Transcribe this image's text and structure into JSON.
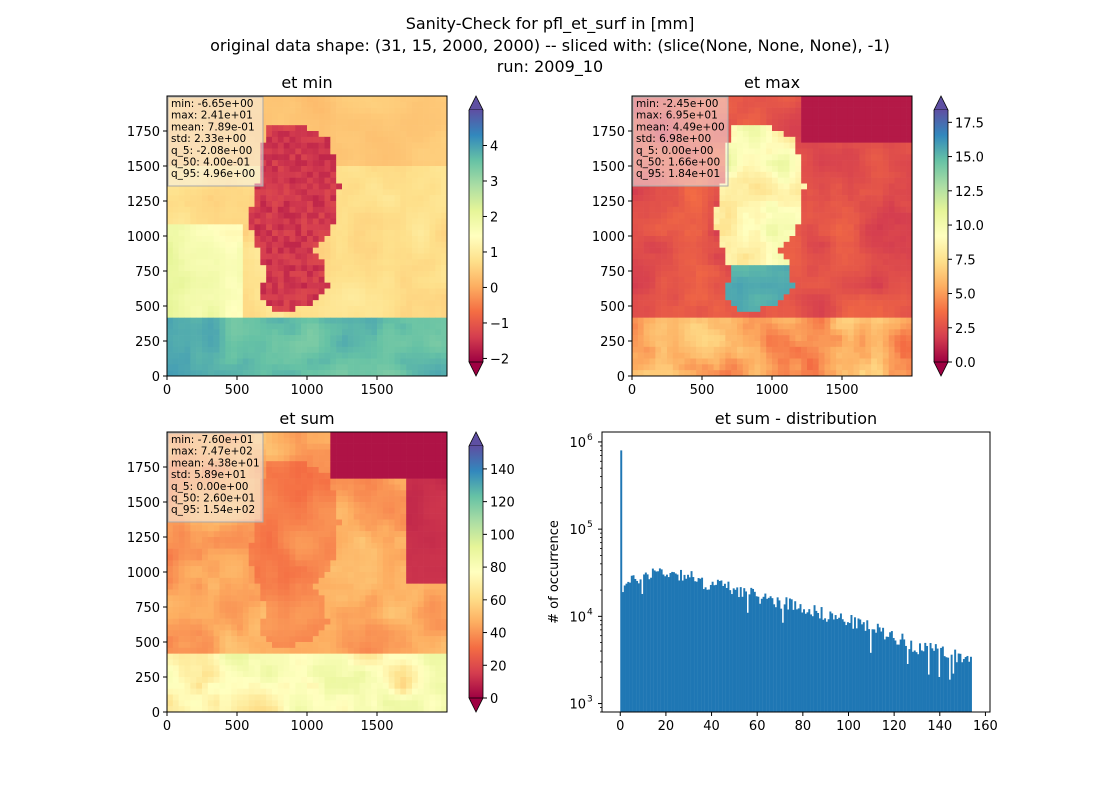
{
  "suptitle": {
    "line1": "Sanity-Check for pfl_et_surf in [mm]",
    "line2": "original data shape: (31, 15, 2000, 2000) -- sliced with: (slice(None, None, None), -1)",
    "line3": "run: 2009_10"
  },
  "colors": {
    "hist_bar": "#1f77b4",
    "stat_box_bg": "#f5f5f5",
    "colormap": "Spectral",
    "spectral_stops": [
      "#9e0142",
      "#d53e4f",
      "#f46d43",
      "#fdae61",
      "#fee08b",
      "#ffffbf",
      "#e6f598",
      "#abdda4",
      "#66c2a5",
      "#3288bd",
      "#5e4fa2"
    ]
  },
  "chart_data": [
    {
      "type": "heatmap",
      "title": "et min",
      "xlim": [
        0,
        2000
      ],
      "ylim": [
        0,
        2000
      ],
      "x_ticks": [
        0,
        500,
        1000,
        1500
      ],
      "y_ticks": [
        0,
        250,
        500,
        750,
        1000,
        1250,
        1500,
        1750
      ],
      "colorbar": {
        "range": [
          -2.1,
          5.0
        ],
        "ticks": [
          -2,
          -1,
          0,
          1,
          2,
          3,
          4
        ],
        "tick_labels": [
          "−2",
          "−1",
          "0",
          "1",
          "2",
          "3",
          "4"
        ],
        "extend": "both"
      },
      "stats": [
        "min: -6.65e+00",
        "max: 2.41e+01",
        "mean: 7.89e-01",
        "std: 2.33e+00",
        "q_5: -2.08e+00",
        "q_50: 4.00e-01",
        "q_95: 4.96e+00"
      ]
    },
    {
      "type": "heatmap",
      "title": "et max",
      "xlim": [
        0,
        2000
      ],
      "ylim": [
        0,
        2000
      ],
      "x_ticks": [
        0,
        500,
        1000,
        1500
      ],
      "y_ticks": [
        0,
        250,
        500,
        750,
        1000,
        1250,
        1500,
        1750
      ],
      "colorbar": {
        "range": [
          0,
          18.4
        ],
        "ticks": [
          0,
          2.5,
          5,
          7.5,
          10,
          12.5,
          15,
          17.5
        ],
        "tick_labels": [
          "0.0",
          "2.5",
          "5.0",
          "7.5",
          "10.0",
          "12.5",
          "15.0",
          "17.5"
        ],
        "extend": "both"
      },
      "stats": [
        "min: -2.45e+00",
        "max: 6.95e+01",
        "mean: 4.49e+00",
        "std: 6.98e+00",
        "q_5: 0.00e+00",
        "q_50: 1.66e+00",
        "q_95: 1.84e+01"
      ]
    },
    {
      "type": "heatmap",
      "title": "et sum",
      "xlim": [
        0,
        2000
      ],
      "ylim": [
        0,
        2000
      ],
      "x_ticks": [
        0,
        500,
        1000,
        1500
      ],
      "y_ticks": [
        0,
        250,
        500,
        750,
        1000,
        1250,
        1500,
        1750
      ],
      "colorbar": {
        "range": [
          0,
          154
        ],
        "ticks": [
          0,
          20,
          40,
          60,
          80,
          100,
          120,
          140
        ],
        "tick_labels": [
          "0",
          "20",
          "40",
          "60",
          "80",
          "100",
          "120",
          "140"
        ],
        "extend": "both"
      },
      "stats": [
        "min: -7.60e+01",
        "max: 7.47e+02",
        "mean: 4.38e+01",
        "std: 5.89e+01",
        "q_5: 0.00e+00",
        "q_50: 2.60e+01",
        "q_95: 1.54e+02"
      ]
    },
    {
      "type": "bar",
      "subtype": "histogram",
      "title": "et sum - distribution",
      "ylabel": "# of occurrence",
      "yscale": "log",
      "xlim": [
        -8,
        162
      ],
      "ylim": [
        800,
        1300000
      ],
      "x_ticks": [
        0,
        20,
        40,
        60,
        80,
        100,
        120,
        140,
        160
      ],
      "y_ticks": [
        1000,
        10000,
        100000,
        1000000
      ],
      "y_tick_labels": [
        [
          "10",
          "3"
        ],
        [
          "10",
          "4"
        ],
        [
          "10",
          "5"
        ],
        [
          "10",
          "6"
        ]
      ],
      "bin_range": [
        0,
        154
      ],
      "bin_count": 200,
      "spike": {
        "x": 0,
        "value": 800000
      },
      "profile": [
        {
          "x": 0,
          "value": 21000
        },
        {
          "x": 5,
          "value": 25000
        },
        {
          "x": 10,
          "value": 30000
        },
        {
          "x": 15,
          "value": 33000
        },
        {
          "x": 25,
          "value": 31000
        },
        {
          "x": 30,
          "value": 30000
        },
        {
          "x": 35,
          "value": 24000
        },
        {
          "x": 40,
          "value": 24000
        },
        {
          "x": 50,
          "value": 21000
        },
        {
          "x": 60,
          "value": 17000
        },
        {
          "x": 70,
          "value": 15000
        },
        {
          "x": 80,
          "value": 13000
        },
        {
          "x": 90,
          "value": 10500
        },
        {
          "x": 100,
          "value": 9000
        },
        {
          "x": 110,
          "value": 7500
        },
        {
          "x": 120,
          "value": 6000
        },
        {
          "x": 130,
          "value": 4500
        },
        {
          "x": 140,
          "value": 4000
        },
        {
          "x": 150,
          "value": 3500
        },
        {
          "x": 154,
          "value": 3000
        }
      ]
    }
  ]
}
